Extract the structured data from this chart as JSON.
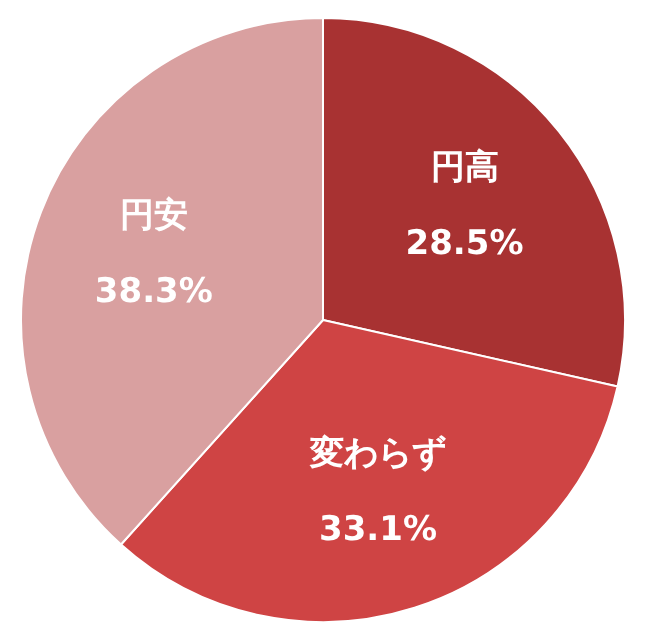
{
  "chart_data": {
    "type": "pie",
    "categories": [
      "円高",
      "変わらず",
      "円安"
    ],
    "values": [
      28.5,
      33.1,
      38.3
    ],
    "colors": [
      "#a83232",
      "#cf4444",
      "#d9a0a0"
    ],
    "value_labels": [
      "28.5%",
      "33.1%",
      "38.3%"
    ],
    "legend": false
  }
}
